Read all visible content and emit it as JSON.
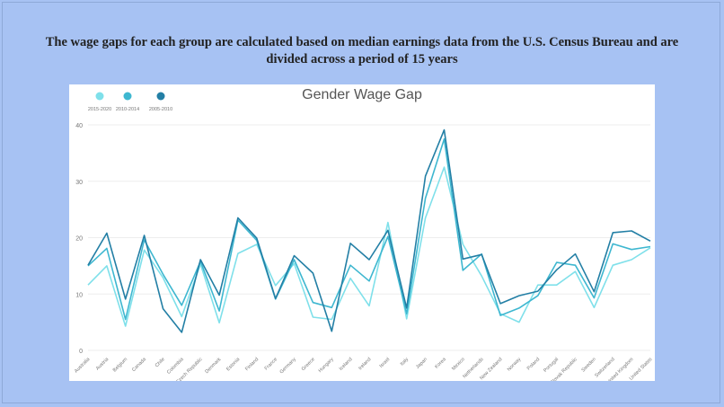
{
  "caption": "The wage gaps for each group are calculated based on median earnings data from the U.S. Census Bureau and are divided across a period of 15 years",
  "chart_data": {
    "type": "line",
    "title": "Gender Wage Gap",
    "xlabel": "",
    "ylabel": "",
    "ylim": [
      0,
      40
    ],
    "yticks": [
      0,
      10,
      20,
      30,
      40
    ],
    "grid": true,
    "legend_position": "top-left",
    "categories": [
      "Australia",
      "Austria",
      "Belgium",
      "Canada",
      "Chile",
      "Colombia",
      "Czech Republic",
      "Denmark",
      "Estonia",
      "Finland",
      "France",
      "Germany",
      "Greece",
      "Hungary",
      "Iceland",
      "Ireland",
      "Israel",
      "Italy",
      "Japan",
      "Korea",
      "Mexico",
      "Netherlands",
      "New Zealand",
      "Norway",
      "Poland",
      "Portugal",
      "Slovak Republic",
      "Sweden",
      "Switzerland",
      "United Kingdom",
      "United States"
    ],
    "series": [
      {
        "name": "2015-2020",
        "color": "#7fe0ea",
        "values": [
          11.6,
          15,
          4.3,
          17.8,
          12.9,
          6,
          15.3,
          4.9,
          17.2,
          18.8,
          11.5,
          15.4,
          5.9,
          5.5,
          12.8,
          7.9,
          22.7,
          5.6,
          23.5,
          32.5,
          18.8,
          13.2,
          6.5,
          5,
          11.6,
          11.6,
          14,
          7.6,
          15.1,
          16.1,
          18.2
        ]
      },
      {
        "name": "2010-2014",
        "color": "#3eb7d0",
        "values": [
          15,
          18.1,
          5.5,
          19.6,
          13.5,
          8,
          15.8,
          7,
          23.1,
          19.5,
          9.1,
          16.1,
          8.5,
          7.6,
          15.1,
          12.3,
          20.2,
          6.5,
          27,
          37.5,
          14.2,
          17.1,
          6.2,
          7.5,
          9.7,
          15.6,
          15.1,
          9.3,
          18.9,
          17.9,
          18.4
        ]
      },
      {
        "name": "2005-2010",
        "color": "#237fa5",
        "values": [
          15.1,
          20.8,
          9.1,
          20.4,
          7.4,
          3.2,
          16.1,
          9.8,
          23.5,
          19.9,
          9.2,
          16.8,
          13.7,
          3.4,
          19,
          16.1,
          21.3,
          7.5,
          30.9,
          39.1,
          16.2,
          17,
          8.3,
          9.7,
          10.5,
          14.3,
          17.1,
          10.4,
          20.9,
          21.2,
          19.4
        ]
      }
    ]
  }
}
